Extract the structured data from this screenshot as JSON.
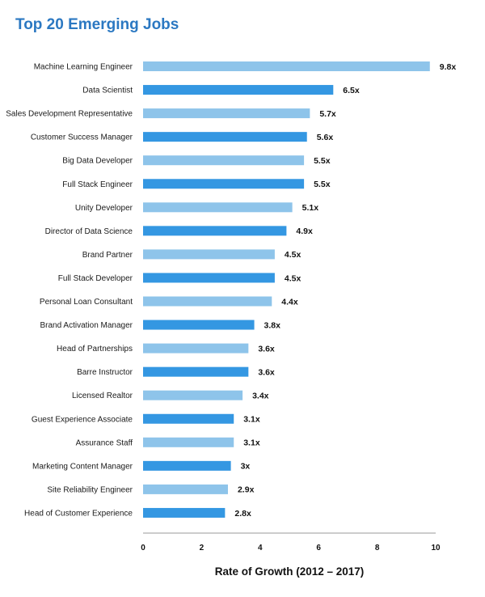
{
  "chart_data": {
    "type": "bar",
    "orientation": "horizontal",
    "title": "Top 20 Emerging Jobs",
    "xlabel": "Rate of Growth (2012 – 2017)",
    "ylabel": "",
    "xlim": [
      0,
      10
    ],
    "xticks": [
      0,
      2,
      4,
      6,
      8,
      10
    ],
    "grid": false,
    "value_suffix": "x",
    "colors": {
      "light": "#8ec4ea",
      "dark": "#3497e2"
    },
    "categories": [
      "Machine Learning Engineer",
      "Data Scientist",
      "Sales Development Representative",
      "Customer Success Manager",
      "Big Data Developer",
      "Full Stack Engineer",
      "Unity Developer",
      "Director of Data Science",
      "Brand Partner",
      "Full Stack Developer",
      "Personal Loan Consultant",
      "Brand Activation Manager",
      "Head of Partnerships",
      "Barre Instructor",
      "Licensed Realtor",
      "Guest Experience Associate",
      "Assurance Staff",
      "Marketing Content Manager",
      "Site Reliability Engineer",
      "Head of Customer Experience"
    ],
    "values": [
      9.8,
      6.5,
      5.7,
      5.6,
      5.5,
      5.5,
      5.1,
      4.9,
      4.5,
      4.5,
      4.4,
      3.8,
      3.6,
      3.6,
      3.4,
      3.1,
      3.1,
      3,
      2.9,
      2.8
    ]
  }
}
